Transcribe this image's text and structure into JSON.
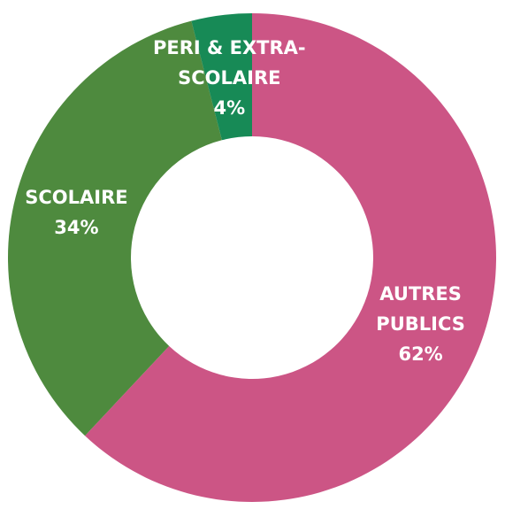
{
  "chart_data": {
    "type": "donut",
    "categories": [
      "AUTRES PUBLICS",
      "SCOLAIRE",
      "PERI & EXTRA-SCOLAIRE"
    ],
    "values": [
      62,
      34,
      4
    ],
    "value_labels": [
      "62%",
      "34%",
      "4%"
    ],
    "colors": [
      "#cc5585",
      "#4e8a3e",
      "#178a56"
    ]
  }
}
